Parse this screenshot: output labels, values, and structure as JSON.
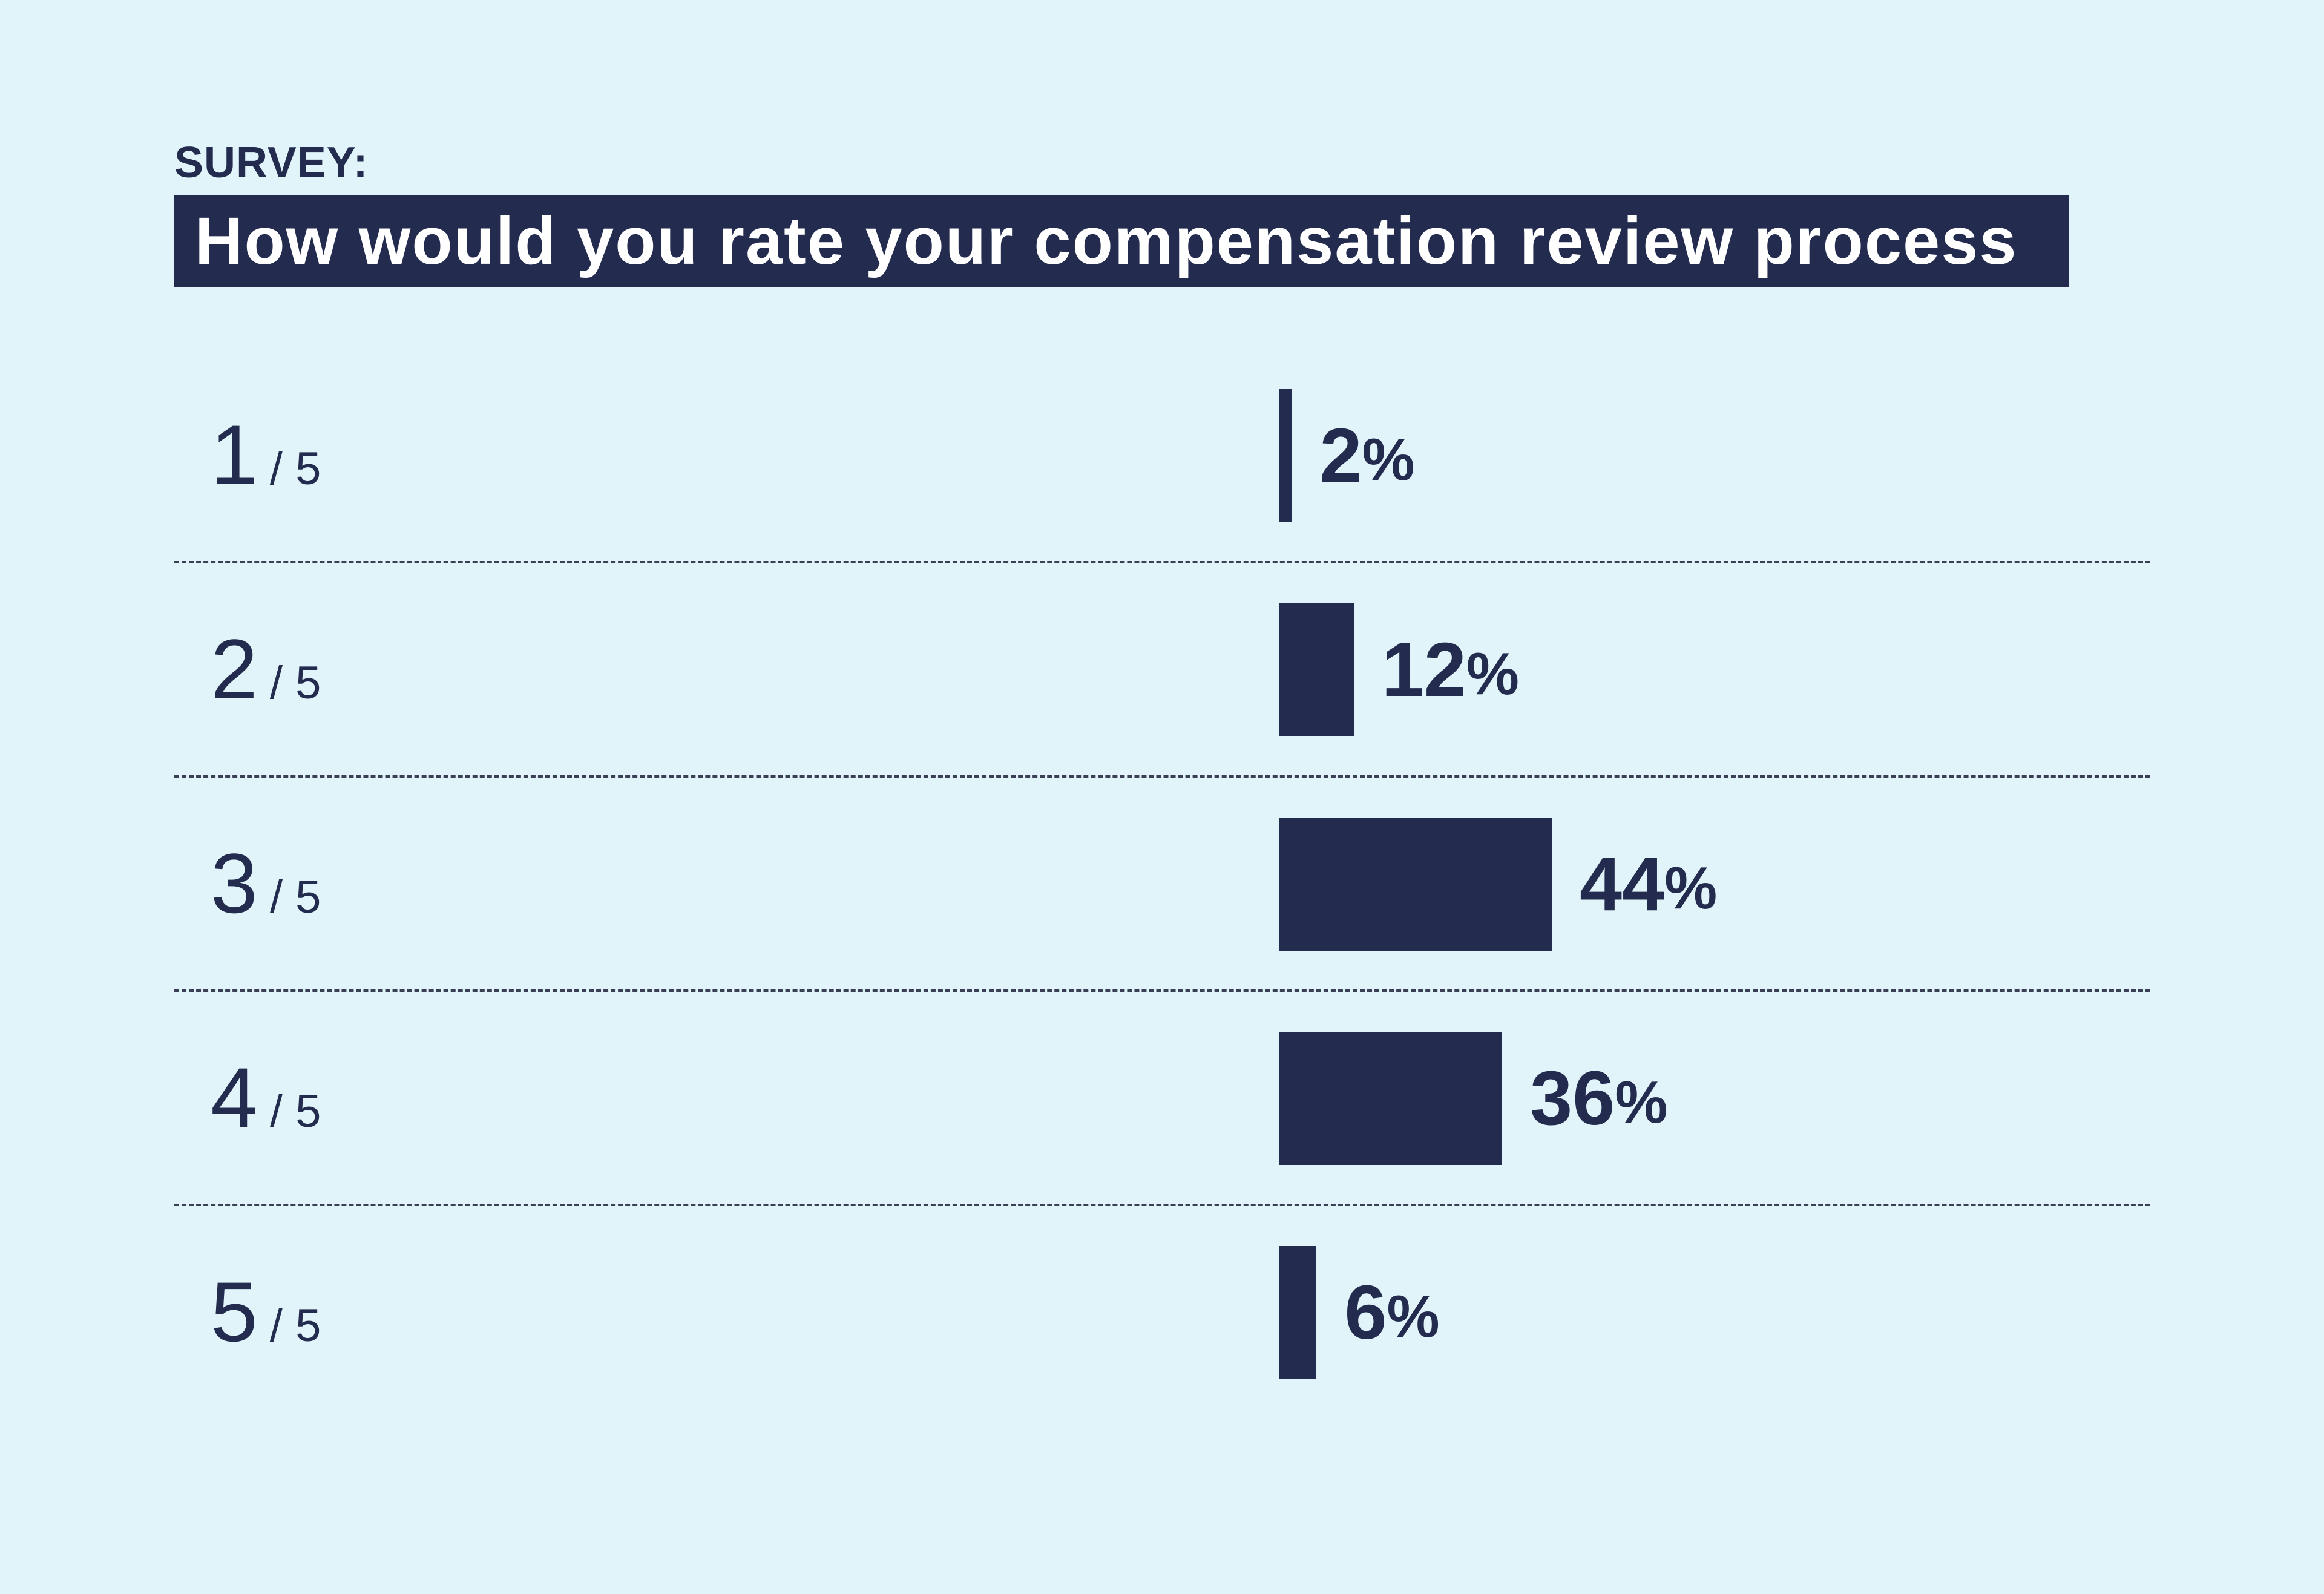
{
  "header": {
    "eyebrow": "SURVEY:",
    "title": "How would you rate your compensation review process"
  },
  "chart_data": {
    "type": "bar",
    "orientation": "horizontal",
    "title": "How would you rate your compensation review process",
    "categories": [
      "1",
      "2",
      "3",
      "4",
      "5"
    ],
    "category_suffix": "/ 5",
    "values": [
      2,
      12,
      44,
      36,
      6
    ],
    "value_suffix": "%",
    "xlim": [
      0,
      100
    ],
    "grid": false,
    "bar_color": "#232c4f"
  },
  "colors": {
    "background": "#e1f4f9",
    "accent": "#232c4f",
    "title_text": "#ffffff"
  }
}
